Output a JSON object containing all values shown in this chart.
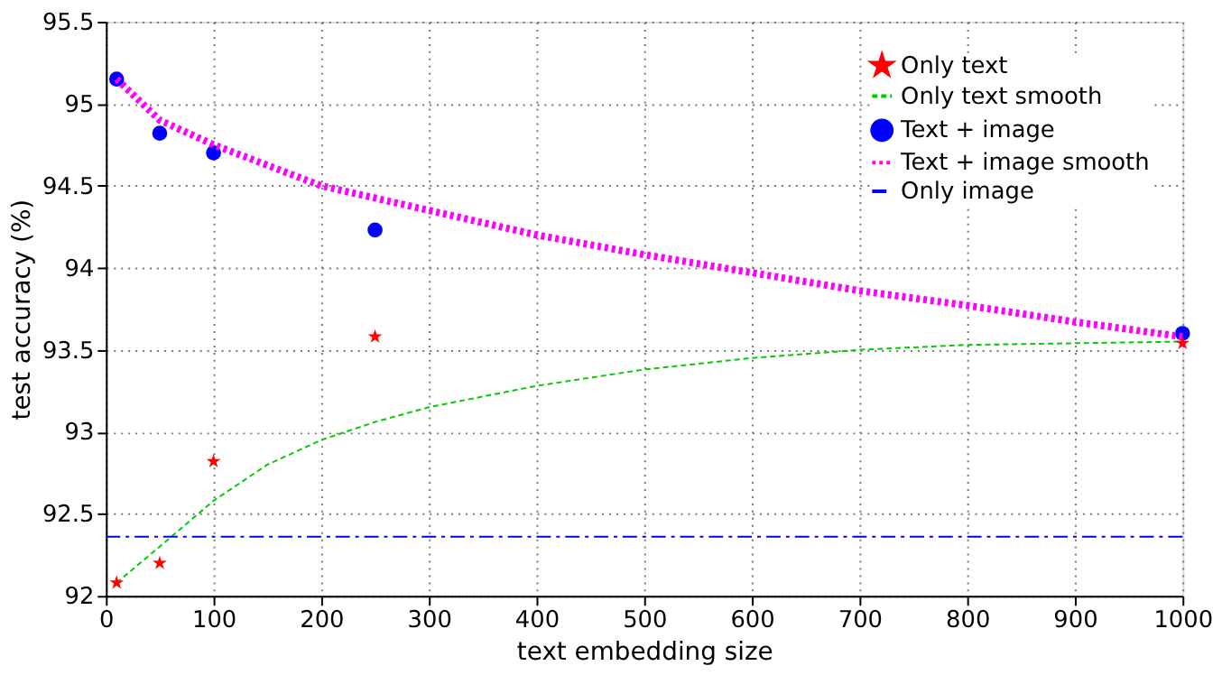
{
  "chart_data": {
    "type": "line",
    "xlabel": "text embedding size",
    "ylabel": "test accuracy (%)",
    "xlim": [
      0,
      1000
    ],
    "xticks": [
      0,
      100,
      200,
      300,
      400,
      500,
      600,
      700,
      800,
      900,
      1000
    ],
    "ylim": [
      92,
      95.5
    ],
    "yticks": [
      92,
      92.5,
      93,
      93.5,
      94,
      94.5,
      95,
      95.5
    ],
    "grid": true,
    "legend": "top right",
    "series": [
      {
        "name": "Only text",
        "type": "scatter",
        "marker": "star",
        "color": "#ff0000",
        "x": [
          10,
          50,
          100,
          250,
          1000
        ],
        "values": [
          92.08,
          92.2,
          92.82,
          93.58,
          93.54
        ]
      },
      {
        "name": "Only text smooth",
        "marker": "none",
        "line_style": "dashed",
        "color": "#00cc00",
        "x": [
          10,
          50,
          100,
          150,
          200,
          250,
          300,
          400,
          500,
          600,
          700,
          800,
          900,
          1000
        ],
        "values": [
          92.08,
          92.3,
          92.58,
          92.8,
          92.95,
          93.06,
          93.15,
          93.28,
          93.38,
          93.45,
          93.5,
          93.53,
          93.54,
          93.55
        ]
      },
      {
        "name": "Text + image",
        "type": "scatter",
        "marker": "circle",
        "color": "#0000ff",
        "x": [
          10,
          50,
          100,
          250,
          1000
        ],
        "values": [
          95.15,
          94.82,
          94.7,
          94.23,
          93.6
        ]
      },
      {
        "name": "Text + image smooth",
        "marker": "none",
        "line_style": "dotted",
        "color": "#ff00ff",
        "x": [
          10,
          50,
          100,
          200,
          300,
          400,
          500,
          600,
          700,
          800,
          900,
          1000
        ],
        "values": [
          95.15,
          94.9,
          94.75,
          94.5,
          94.35,
          94.2,
          94.08,
          93.97,
          93.86,
          93.77,
          93.67,
          93.58
        ]
      },
      {
        "name": "Only image",
        "marker": "none",
        "line_style": "dashdot",
        "color": "#0000ff",
        "x": [
          0,
          1000
        ],
        "values": [
          92.36,
          92.36
        ]
      }
    ]
  }
}
